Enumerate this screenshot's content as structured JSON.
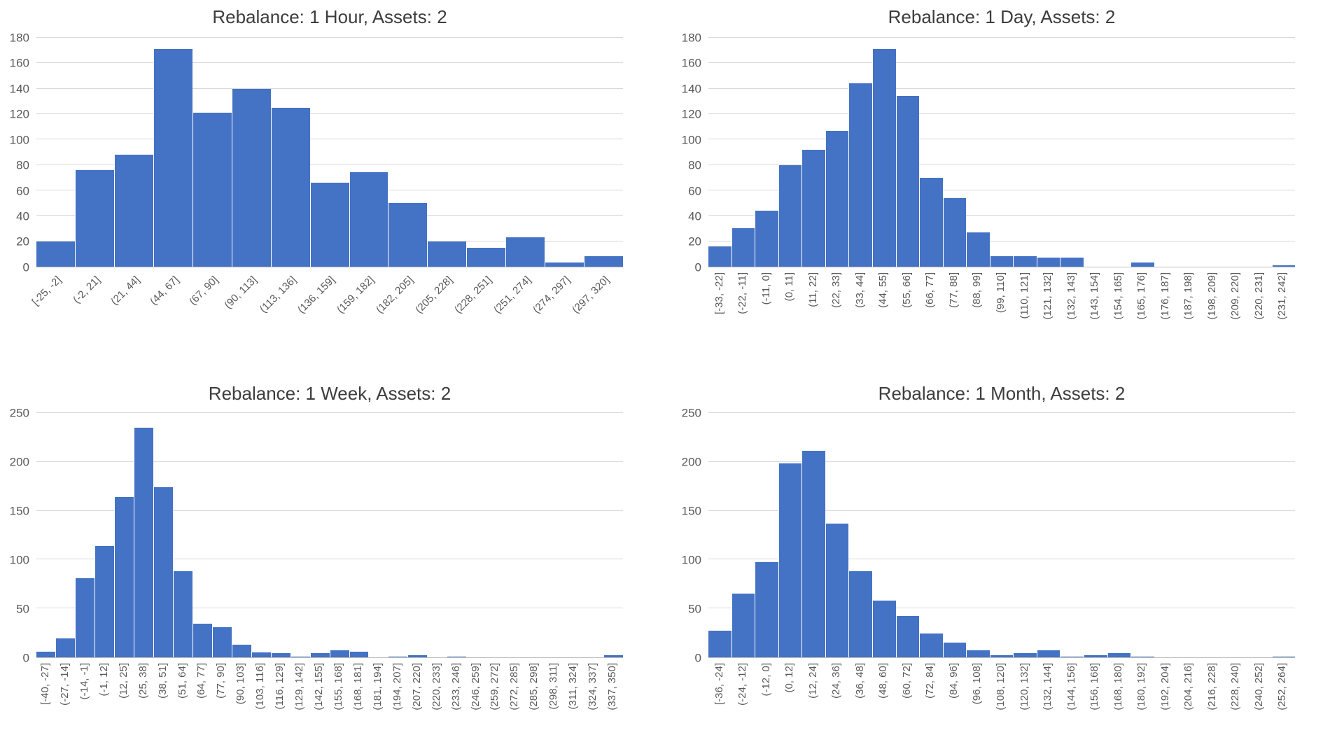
{
  "page": {
    "background": "#ffffff"
  },
  "colors": {
    "bar_fill": "#4472C4",
    "bar_separator": "#FFFFFF",
    "gridline": "#D9D9D9",
    "axis_line": "#BFBFBF",
    "tick_label": "#595959",
    "title": "#3D3D3D"
  },
  "chart_data": [
    {
      "type": "bar",
      "title": "Rebalance: 1 Hour, Assets: 2",
      "categories": [
        "[-25, -2]",
        "(-2, 21]",
        "(21, 44]",
        "(44, 67]",
        "(67, 90]",
        "(90, 113]",
        "(113, 136]",
        "(136, 159]",
        "(159, 182]",
        "(182, 205]",
        "(205, 228]",
        "(228, 251]",
        "(251, 274]",
        "(274, 297]",
        "(297, 320]"
      ],
      "values": [
        20,
        76,
        88,
        171,
        121,
        140,
        125,
        66,
        74,
        50,
        20,
        15,
        23,
        3,
        8
      ],
      "xlabel": "",
      "ylabel": "",
      "ylim": [
        0,
        180
      ],
      "yticks": [
        0,
        20,
        40,
        60,
        80,
        100,
        120,
        140,
        160,
        180
      ],
      "xlabel_rotation": 45,
      "grid": true,
      "legend": "none"
    },
    {
      "type": "bar",
      "title": "Rebalance: 1 Day, Assets: 2",
      "categories": [
        "[-33, -22]",
        "(-22, -11]",
        "(-11, 0]",
        "(0, 11]",
        "(11, 22]",
        "(22, 33]",
        "(33, 44]",
        "(44, 55]",
        "(55, 66]",
        "(66, 77]",
        "(77, 88]",
        "(88, 99]",
        "(99, 110]",
        "(110, 121]",
        "(121, 132]",
        "(132, 143]",
        "(143, 154]",
        "(154, 165]",
        "(165, 176]",
        "(176, 187]",
        "(187, 198]",
        "(198, 209]",
        "(209, 220]",
        "(220, 231]",
        "(231, 242]"
      ],
      "values": [
        16,
        30,
        44,
        80,
        92,
        107,
        144,
        171,
        134,
        70,
        54,
        27,
        8,
        8,
        7,
        7,
        0,
        0,
        3,
        0,
        0,
        0,
        0,
        0,
        1
      ],
      "xlabel": "",
      "ylabel": "",
      "ylim": [
        0,
        180
      ],
      "yticks": [
        0,
        20,
        40,
        60,
        80,
        100,
        120,
        140,
        160,
        180
      ],
      "xlabel_rotation": 90,
      "grid": true,
      "legend": "none"
    },
    {
      "type": "bar",
      "title": "Rebalance: 1 Week, Assets: 2",
      "categories": [
        "[-40, -27]",
        "(-27, -14]",
        "(-14, -1]",
        "(-1, 12]",
        "(12, 25]",
        "(25, 38]",
        "(38, 51]",
        "(51, 64]",
        "(64, 77]",
        "(77, 90]",
        "(90, 103]",
        "(103, 116]",
        "(116, 129]",
        "(129, 142]",
        "(142, 155]",
        "(155, 168]",
        "(168, 181]",
        "(181, 194]",
        "(194, 207]",
        "(207, 220]",
        "(220, 233]",
        "(233, 246]",
        "(246, 259]",
        "(259, 272]",
        "(272, 285]",
        "(285, 298]",
        "(298, 311]",
        "(311, 324]",
        "(324, 337]",
        "(337, 350]"
      ],
      "values": [
        6,
        19,
        81,
        114,
        164,
        235,
        174,
        88,
        34,
        31,
        13,
        5,
        4,
        1,
        4,
        7,
        6,
        0,
        1,
        2,
        0,
        1,
        0,
        0,
        0,
        0,
        0,
        0,
        0,
        2
      ],
      "xlabel": "",
      "ylabel": "",
      "ylim": [
        0,
        250
      ],
      "yticks": [
        0,
        50,
        100,
        150,
        200,
        250
      ],
      "xlabel_rotation": 90,
      "grid": true,
      "legend": "none"
    },
    {
      "type": "bar",
      "title": "Rebalance: 1 Month, Assets: 2",
      "categories": [
        "[-36, -24]",
        "(-24, -12]",
        "(-12, 0]",
        "(0, 12]",
        "(12, 24]",
        "(24, 36]",
        "(36, 48]",
        "(48, 60]",
        "(60, 72]",
        "(72, 84]",
        "(84, 96]",
        "(96, 108]",
        "(108, 120]",
        "(120, 132]",
        "(132, 144]",
        "(144, 156]",
        "(156, 168]",
        "(168, 180]",
        "(180, 192]",
        "(192, 204]",
        "(204, 216]",
        "(216, 228]",
        "(228, 240]",
        "(240, 252]",
        "(252, 264]"
      ],
      "values": [
        27,
        65,
        97,
        198,
        211,
        137,
        88,
        58,
        42,
        24,
        15,
        7,
        2,
        4,
        7,
        1,
        2,
        4,
        1,
        0,
        0,
        0,
        0,
        0,
        1
      ],
      "xlabel": "",
      "ylabel": "",
      "ylim": [
        0,
        250
      ],
      "yticks": [
        0,
        50,
        100,
        150,
        200,
        250
      ],
      "xlabel_rotation": 90,
      "grid": true,
      "legend": "none"
    }
  ]
}
